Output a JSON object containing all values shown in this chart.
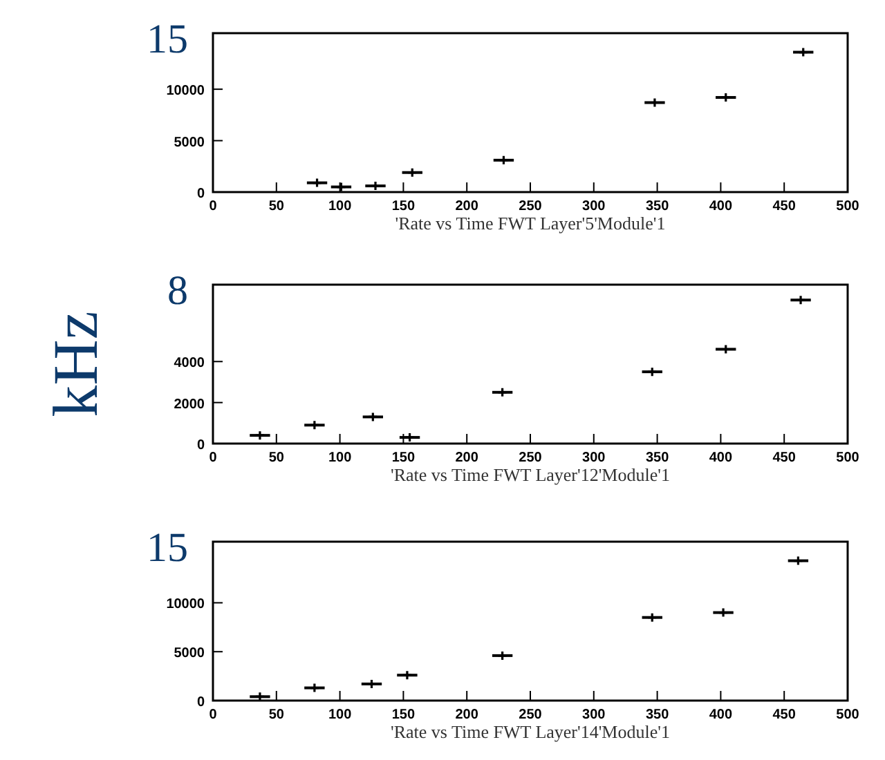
{
  "chart_data": [
    {
      "type": "scatter",
      "annotations": [
        "15"
      ],
      "xlabel": "'Rate vs Time FWT Layer'5'Module'1",
      "marker": "cross",
      "grid": false,
      "x": [
        82,
        101,
        128,
        157,
        229,
        348,
        404,
        465
      ],
      "values": [
        900,
        500,
        600,
        1900,
        3100,
        8700,
        9200,
        13600
      ],
      "xerrors": [
        8,
        8,
        8,
        8,
        8,
        8,
        8,
        8
      ],
      "color": "#000000",
      "xlim": [
        0,
        500
      ],
      "xticks": [
        0,
        50,
        100,
        150,
        200,
        250,
        300,
        350,
        400,
        450,
        500
      ],
      "ylim": [
        0,
        15450
      ],
      "yticks": [
        0,
        5000,
        10000
      ]
    },
    {
      "type": "scatter",
      "annotations": [
        "8"
      ],
      "ylabel": "kHz",
      "xlabel": "'Rate vs Time FWT Layer'12'Module'1",
      "marker": "cross",
      "grid": false,
      "x": [
        37,
        80,
        126,
        155,
        228,
        346,
        404,
        463
      ],
      "values": [
        400,
        900,
        1300,
        300,
        2500,
        3500,
        4600,
        7000
      ],
      "xerrors": [
        8,
        8,
        8,
        8,
        8,
        8,
        8,
        8
      ],
      "color": "#000000",
      "xlim": [
        0,
        500
      ],
      "xticks": [
        0,
        50,
        100,
        150,
        200,
        250,
        300,
        350,
        400,
        450,
        500
      ],
      "ylim": [
        0,
        7750
      ],
      "yticks": [
        0,
        2000,
        4000
      ]
    },
    {
      "type": "scatter",
      "annotations": [
        "15"
      ],
      "xlabel": "'Rate vs Time FWT Layer'14'Module'1",
      "marker": "cross",
      "grid": false,
      "x": [
        37,
        80,
        125,
        153,
        228,
        346,
        402,
        461
      ],
      "values": [
        400,
        1300,
        1700,
        2600,
        4600,
        8500,
        9000,
        14300
      ],
      "xerrors": [
        8,
        8,
        8,
        8,
        8,
        8,
        8,
        8
      ],
      "color": "#000000",
      "xlim": [
        0,
        500
      ],
      "xticks": [
        0,
        50,
        100,
        150,
        200,
        250,
        300,
        350,
        400,
        450,
        500
      ],
      "ylim": [
        0,
        16250
      ],
      "yticks": [
        0,
        5000,
        10000
      ]
    }
  ]
}
